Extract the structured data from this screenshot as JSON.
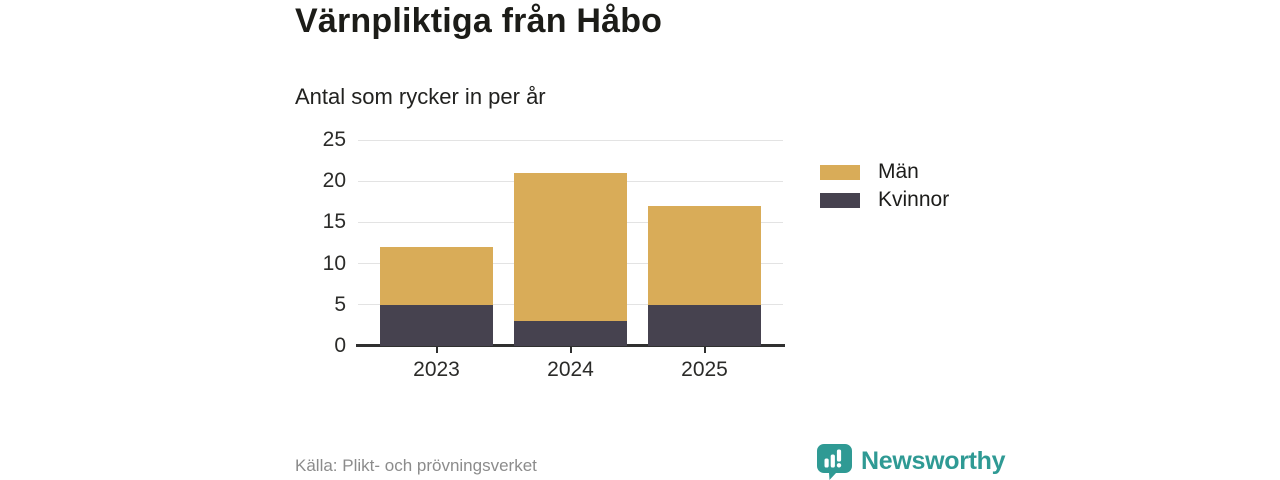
{
  "header": {
    "title": "Värnpliktiga från Håbo",
    "subtitle": "Antal som rycker in per år"
  },
  "legend": [
    {
      "label": "Män",
      "color": "#d9ac58"
    },
    {
      "label": "Kvinnor",
      "color": "#46424f"
    }
  ],
  "chart_data": {
    "type": "bar",
    "stacked": true,
    "title": "Värnpliktiga från Håbo",
    "subtitle": "Antal som rycker in per år",
    "categories": [
      "2023",
      "2024",
      "2025"
    ],
    "series": [
      {
        "name": "Kvinnor",
        "color": "#46424f",
        "values": [
          5,
          3,
          5
        ]
      },
      {
        "name": "Män",
        "color": "#d9ac58",
        "values": [
          7,
          18,
          12
        ]
      }
    ],
    "totals": [
      12,
      21,
      17
    ],
    "yticks": [
      0,
      5,
      10,
      15,
      20,
      25
    ],
    "ylim": [
      0,
      25
    ],
    "xlabel": "",
    "ylabel": "",
    "grid": true,
    "legend_position": "right"
  },
  "colors": {
    "men": "#d9ac58",
    "women": "#46424f",
    "grid": "#e3e3e3",
    "axis": "#303030",
    "text": "#2b2b29",
    "muted": "#8c8c8c",
    "brand_teal": "#2f9a94"
  },
  "footer": {
    "source": "Källa: Plikt- och prövningsverket",
    "brand": "Newsworthy"
  }
}
